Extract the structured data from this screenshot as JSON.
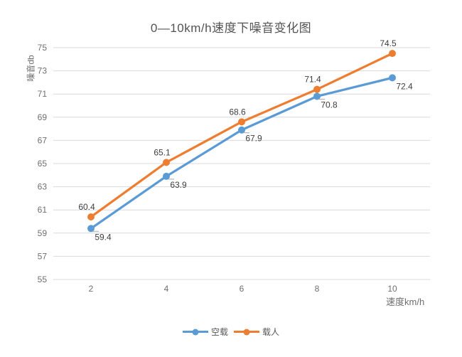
{
  "chart_data": {
    "type": "line",
    "title": "0—10km/h速度下噪音变化图",
    "xlabel": "速度km/h",
    "ylabel": "噪音db",
    "categories": [
      2,
      4,
      6,
      8,
      10
    ],
    "series": [
      {
        "name": "空载",
        "color": "#5B9BD5",
        "values": [
          59.4,
          63.9,
          67.9,
          70.8,
          72.4
        ],
        "label_position": "below"
      },
      {
        "name": "载人",
        "color": "#ED7D31",
        "values": [
          60.4,
          65.1,
          68.6,
          71.4,
          74.5
        ],
        "label_position": "above"
      }
    ],
    "ylim": [
      55,
      75
    ],
    "ytick_step": 2,
    "grid": "horizontal",
    "legend_position": "bottom",
    "colors": {
      "gridline": "#D9D9D9",
      "axis_text": "#6e6e6e",
      "data_label": "#3d3d3d",
      "leader_line": "#a6a6a6",
      "background": "#ffffff"
    }
  }
}
